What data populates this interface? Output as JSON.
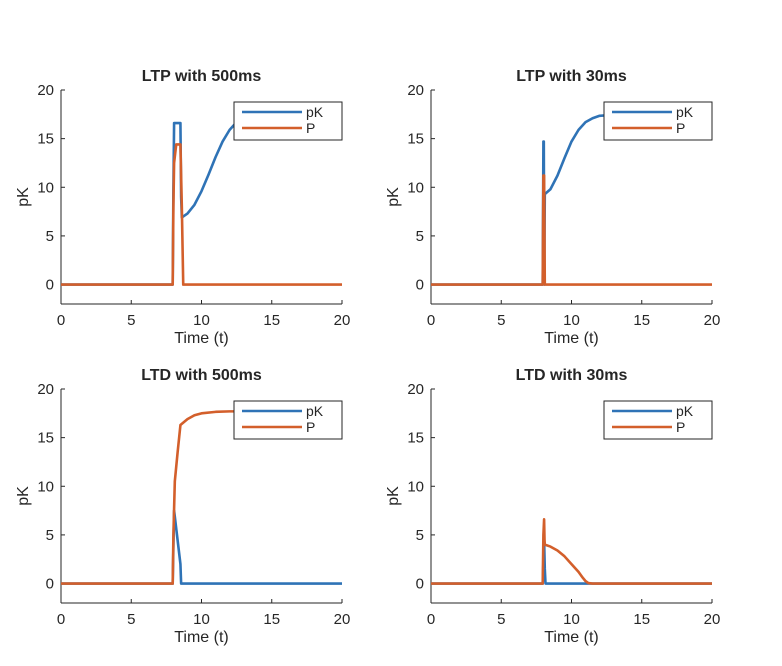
{
  "colors": {
    "pK": "#2F73B6",
    "P": "#D35F2B",
    "axis": "#262626",
    "background": "#FFFFFF"
  },
  "chart_data": [
    {
      "type": "line",
      "title": "LTP with 500ms",
      "xlabel": "Time (t)",
      "ylabel": "pK",
      "xlim": [
        0,
        20
      ],
      "ylim": [
        -2,
        20
      ],
      "xticks": [
        0,
        5,
        10,
        15,
        20
      ],
      "yticks": [
        0,
        5,
        10,
        15,
        20
      ],
      "legend": "top-right",
      "series": [
        {
          "name": "pK",
          "x": [
            0,
            7.95,
            8.0,
            8.05,
            8.5,
            8.55,
            8.6,
            9,
            9.5,
            10,
            10.5,
            11,
            11.5,
            12,
            12.5,
            13,
            13.5,
            14,
            15,
            16,
            20
          ],
          "y": [
            0,
            0,
            10,
            16.6,
            16.6,
            9,
            6.9,
            7.3,
            8.2,
            9.6,
            11.3,
            13.1,
            14.7,
            15.9,
            16.7,
            17.1,
            17.3,
            17.45,
            17.5,
            17.5,
            17.5
          ]
        },
        {
          "name": "P",
          "x": [
            0,
            7.95,
            8.0,
            8.05,
            8.2,
            8.5,
            8.6,
            8.7,
            20
          ],
          "y": [
            0,
            0,
            8,
            12.5,
            14.4,
            14.4,
            8,
            0,
            0
          ]
        }
      ]
    },
    {
      "type": "line",
      "title": "LTP with 30ms",
      "xlabel": "Time (t)",
      "ylabel": "pK",
      "xlim": [
        0,
        20
      ],
      "ylim": [
        -2,
        20
      ],
      "xticks": [
        0,
        5,
        10,
        15,
        20
      ],
      "yticks": [
        0,
        5,
        10,
        15,
        20
      ],
      "legend": "top-right",
      "series": [
        {
          "name": "pK",
          "x": [
            0,
            7.95,
            8.0,
            8.03,
            8.06,
            8.1,
            8.5,
            9,
            9.5,
            10,
            10.5,
            11,
            11.5,
            12,
            13,
            14,
            20
          ],
          "y": [
            0,
            0,
            14.7,
            14.7,
            0,
            9.3,
            9.8,
            11.2,
            13.0,
            14.7,
            15.9,
            16.7,
            17.1,
            17.35,
            17.45,
            17.5,
            17.5
          ]
        },
        {
          "name": "P",
          "x": [
            0,
            7.95,
            8.0,
            8.05,
            8.1,
            20
          ],
          "y": [
            0,
            0,
            11.2,
            11.2,
            0,
            0
          ]
        }
      ]
    },
    {
      "type": "line",
      "title": "LTD with 500ms",
      "xlabel": "Time (t)",
      "ylabel": "pK",
      "xlim": [
        0,
        20
      ],
      "ylim": [
        -2,
        20
      ],
      "xticks": [
        0,
        5,
        10,
        15,
        20
      ],
      "yticks": [
        0,
        5,
        10,
        15,
        20
      ],
      "legend": "top-right",
      "series": [
        {
          "name": "pK",
          "x": [
            0,
            7.95,
            8.05,
            8.5,
            8.55,
            20
          ],
          "y": [
            0,
            0,
            7.5,
            2.0,
            0,
            0
          ]
        },
        {
          "name": "P",
          "x": [
            0,
            7.95,
            8.0,
            8.1,
            8.3,
            8.5,
            9,
            9.5,
            10,
            11,
            12,
            13,
            20
          ],
          "y": [
            0,
            0,
            5,
            10.5,
            13.5,
            16.3,
            16.9,
            17.3,
            17.5,
            17.65,
            17.7,
            17.7,
            17.7
          ]
        }
      ]
    },
    {
      "type": "line",
      "title": "LTD with 30ms",
      "xlabel": "Time (t)",
      "ylabel": "pK",
      "xlim": [
        0,
        20
      ],
      "ylim": [
        -2,
        20
      ],
      "xticks": [
        0,
        5,
        10,
        15,
        20
      ],
      "yticks": [
        0,
        5,
        10,
        15,
        20
      ],
      "legend": "top-right",
      "series": [
        {
          "name": "pK",
          "x": [
            0,
            7.95,
            8.05,
            8.1,
            8.15,
            20
          ],
          "y": [
            0,
            0,
            4.5,
            1.5,
            0,
            0
          ]
        },
        {
          "name": "P",
          "x": [
            0,
            7.95,
            8.0,
            8.05,
            8.08,
            8.1,
            8.5,
            9,
            9.5,
            10,
            10.5,
            10.8,
            11,
            11.2,
            11.5,
            20
          ],
          "y": [
            0,
            0,
            5,
            6.6,
            4.5,
            4.0,
            3.8,
            3.4,
            2.8,
            2.0,
            1.2,
            0.6,
            0.25,
            0.05,
            0,
            0
          ]
        }
      ]
    }
  ]
}
